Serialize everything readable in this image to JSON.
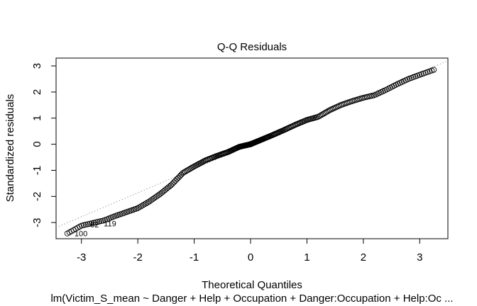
{
  "chart_data": {
    "type": "scatter",
    "title": "Q-Q Residuals",
    "xlabel": "Theoretical Quantiles",
    "ylabel": "Standardized residuals",
    "subtitle": "lm(Victim_S_mean ~ Danger + Help + Occupation + Danger:Occupation + Help:Oc ...",
    "xlim": [
      -3.45,
      3.5
    ],
    "ylim": [
      -3.62,
      3.3
    ],
    "x_ticks": [
      -3,
      -2,
      -1,
      0,
      1,
      2,
      3
    ],
    "y_ticks": [
      -3,
      -2,
      -1,
      0,
      1,
      2,
      3
    ],
    "grid": false,
    "legend": "none",
    "reference_line": {
      "style": "dotted",
      "color": "#8c8c8c",
      "intercept": -0.02,
      "slope": 0.92
    },
    "point_labels": [
      {
        "text": "100",
        "x": -3.2,
        "y": -3.42
      },
      {
        "text": "62",
        "x": -2.92,
        "y": -3.08
      },
      {
        "text": "119",
        "x": -2.68,
        "y": -3.04
      }
    ],
    "quantile_curve": {
      "count": 300,
      "knots": [
        [
          -3.25,
          -3.42
        ],
        [
          -3.0,
          -3.12
        ],
        [
          -2.8,
          -3.02
        ],
        [
          -2.6,
          -2.92
        ],
        [
          -2.4,
          -2.75
        ],
        [
          -2.2,
          -2.6
        ],
        [
          -2.0,
          -2.45
        ],
        [
          -1.8,
          -2.2
        ],
        [
          -1.6,
          -1.9
        ],
        [
          -1.4,
          -1.55
        ],
        [
          -1.2,
          -1.1
        ],
        [
          -1.0,
          -0.85
        ],
        [
          -0.8,
          -0.62
        ],
        [
          -0.6,
          -0.45
        ],
        [
          -0.4,
          -0.3
        ],
        [
          -0.2,
          -0.1
        ],
        [
          0.0,
          0.0
        ],
        [
          0.2,
          0.18
        ],
        [
          0.4,
          0.36
        ],
        [
          0.6,
          0.55
        ],
        [
          0.8,
          0.75
        ],
        [
          1.0,
          0.93
        ],
        [
          1.2,
          1.05
        ],
        [
          1.4,
          1.3
        ],
        [
          1.6,
          1.5
        ],
        [
          1.8,
          1.65
        ],
        [
          2.0,
          1.78
        ],
        [
          2.2,
          1.88
        ],
        [
          2.4,
          2.08
        ],
        [
          2.6,
          2.3
        ],
        [
          2.8,
          2.5
        ],
        [
          3.0,
          2.66
        ],
        [
          3.25,
          2.85
        ]
      ]
    }
  }
}
